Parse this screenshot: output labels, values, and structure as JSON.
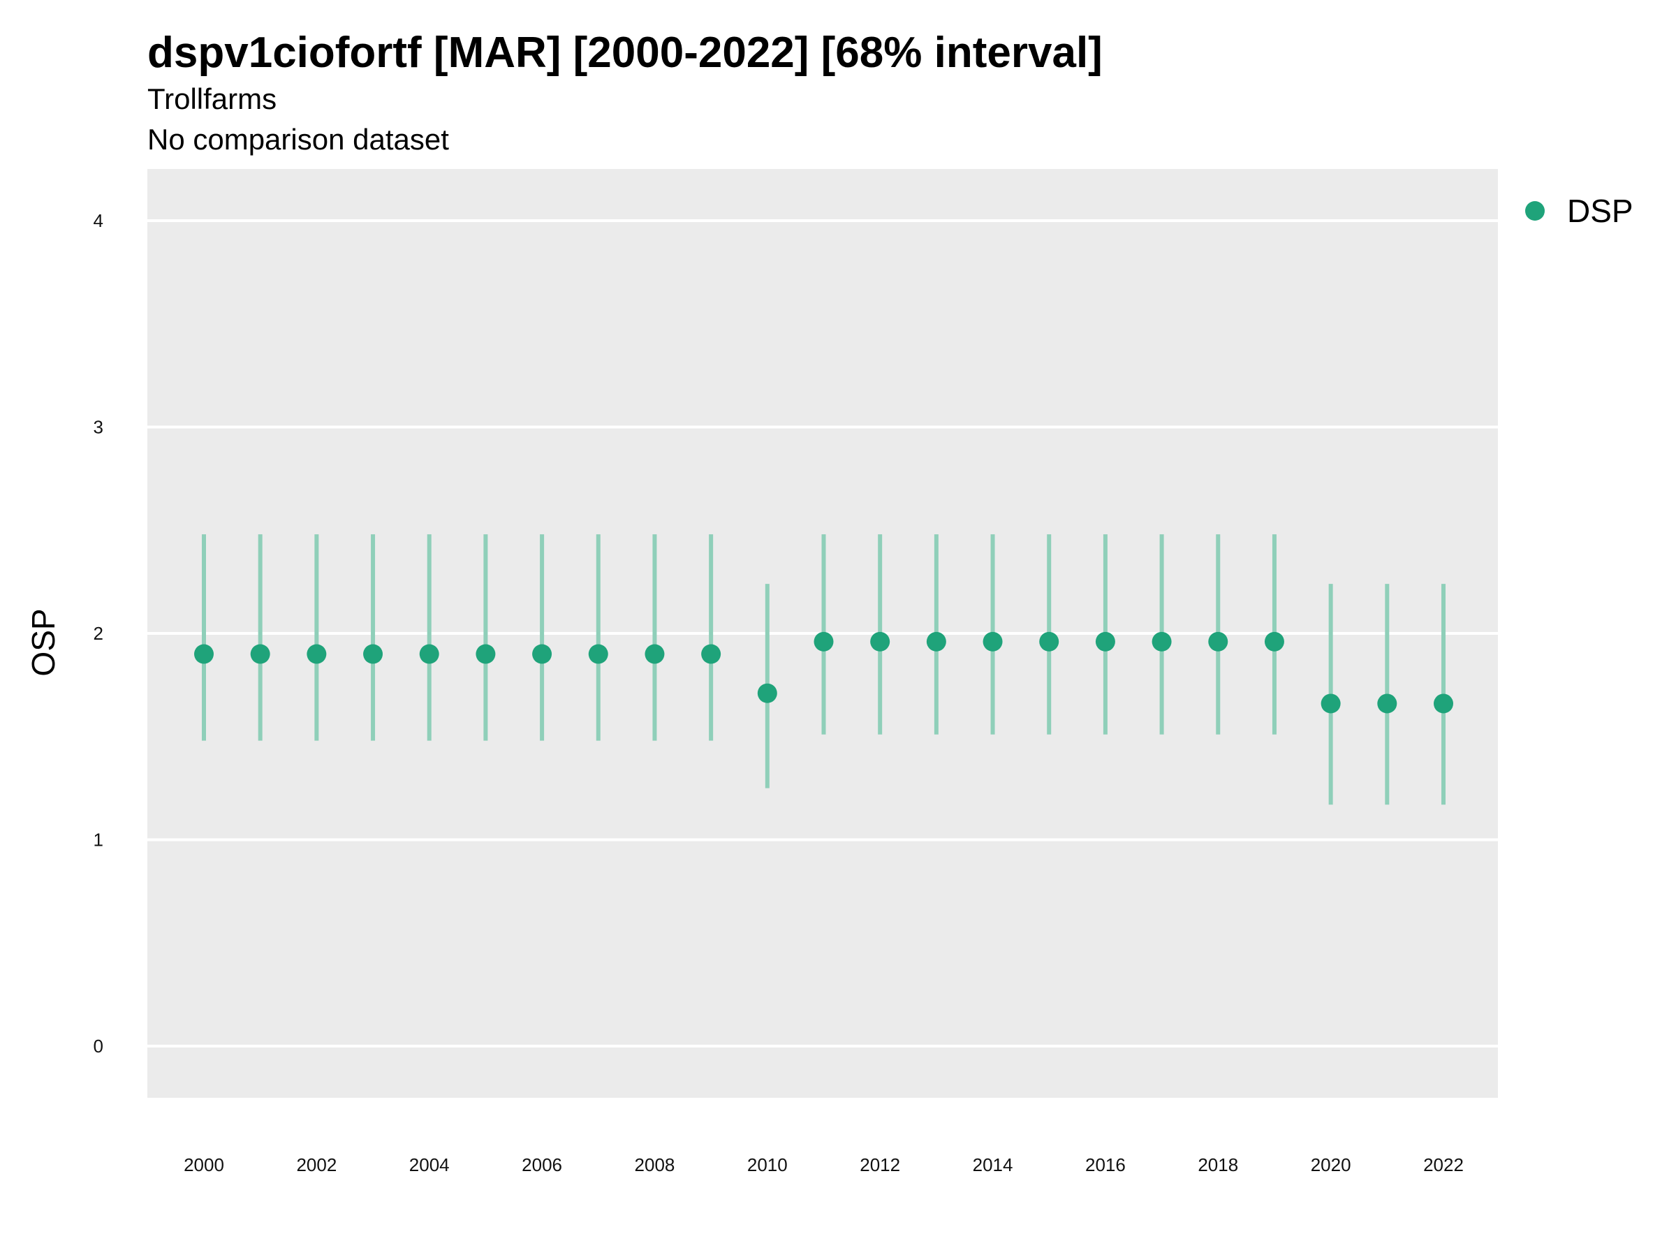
{
  "chart_data": {
    "type": "scatter",
    "title": "dspv1ciofortf [MAR] [2000-2022] [68% interval]",
    "subtitle": "Trollfarms",
    "subtitle2": "No comparison dataset",
    "xlabel": "",
    "ylabel": "OSP",
    "xlim": [
      1999,
      2023
    ],
    "ylim": [
      -0.25,
      4.25
    ],
    "x_ticks": [
      2000,
      2002,
      2004,
      2006,
      2008,
      2010,
      2012,
      2014,
      2016,
      2018,
      2020,
      2022
    ],
    "y_ticks": [
      0,
      1,
      2,
      3,
      4
    ],
    "grid": true,
    "legend_position": "top-right",
    "series": [
      {
        "name": "DSP",
        "color": "#1fa37a",
        "x": [
          2000,
          2001,
          2002,
          2003,
          2004,
          2005,
          2006,
          2007,
          2008,
          2009,
          2010,
          2011,
          2012,
          2013,
          2014,
          2015,
          2016,
          2017,
          2018,
          2019,
          2020,
          2021,
          2022
        ],
        "y": [
          1.9,
          1.9,
          1.9,
          1.9,
          1.9,
          1.9,
          1.9,
          1.9,
          1.9,
          1.9,
          1.71,
          1.96,
          1.96,
          1.96,
          1.96,
          1.96,
          1.96,
          1.96,
          1.96,
          1.96,
          1.66,
          1.66,
          1.66
        ],
        "lower": [
          1.48,
          1.48,
          1.48,
          1.48,
          1.48,
          1.48,
          1.48,
          1.48,
          1.48,
          1.48,
          1.25,
          1.51,
          1.51,
          1.51,
          1.51,
          1.51,
          1.51,
          1.51,
          1.51,
          1.51,
          1.17,
          1.17,
          1.17
        ],
        "upper": [
          2.48,
          2.48,
          2.48,
          2.48,
          2.48,
          2.48,
          2.48,
          2.48,
          2.48,
          2.48,
          2.24,
          2.48,
          2.48,
          2.48,
          2.48,
          2.48,
          2.48,
          2.48,
          2.48,
          2.48,
          2.24,
          2.24,
          2.24
        ]
      }
    ]
  },
  "colors": {
    "panel_background": "#ebebeb",
    "grid": "#ffffff",
    "interval": "#8fcfb9",
    "point": "#1fa37a"
  }
}
